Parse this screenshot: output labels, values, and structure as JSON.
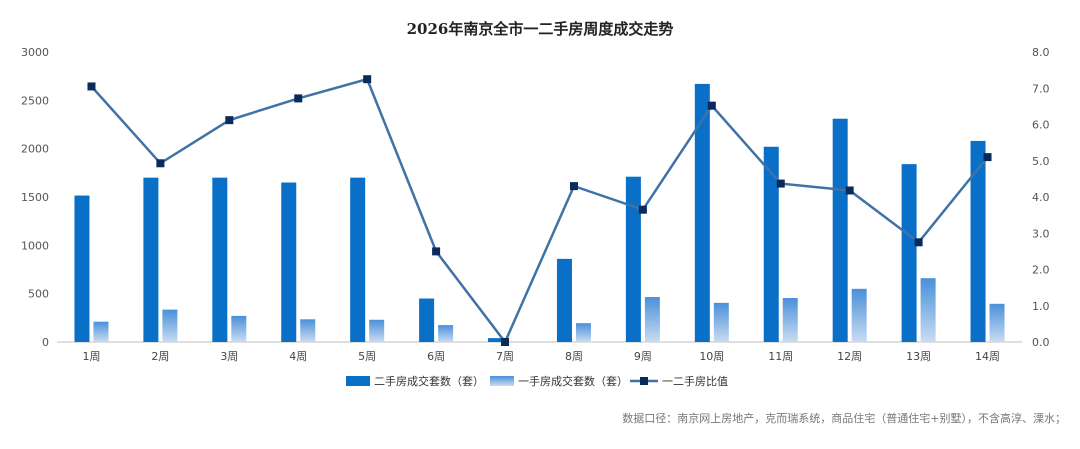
{
  "chart_data": {
    "type": "bar",
    "title": "2026年南京全市一二手房周度成交走势",
    "categories": [
      "1周",
      "2周",
      "3周",
      "4周",
      "5周",
      "6周",
      "7周",
      "8周",
      "9周",
      "10周",
      "11周",
      "12周",
      "13周",
      "14周"
    ],
    "series": [
      {
        "name": "二手房成交套数（套）",
        "type": "bar",
        "axis": "left",
        "values": [
          1515,
          1700,
          1700,
          1650,
          1700,
          450,
          40,
          860,
          1710,
          2670,
          2020,
          2310,
          1840,
          2080
        ],
        "color": "#0a6fc6"
      },
      {
        "name": "一手房成交套数（套）",
        "type": "bar",
        "axis": "left",
        "values": [
          210,
          335,
          270,
          235,
          230,
          175,
          0,
          195,
          465,
          405,
          455,
          550,
          660,
          395
        ],
        "color": "#5b9bd5"
      },
      {
        "name": "一二手房比值",
        "type": "line",
        "axis": "right",
        "values": [
          7.05,
          4.93,
          6.12,
          6.72,
          7.25,
          2.5,
          0.0,
          4.3,
          3.65,
          6.52,
          4.37,
          4.18,
          2.75,
          5.1
        ],
        "color": "#3f72a6",
        "marker_color": "#0b2a5c"
      }
    ],
    "y_left": {
      "ylim": [
        0,
        3000
      ],
      "ticks": [
        "0",
        "500",
        "1000",
        "1500",
        "2000",
        "2500",
        "3000"
      ]
    },
    "y_right": {
      "ylim": [
        0,
        8
      ],
      "ticks": [
        "0.0",
        "1.0",
        "2.0",
        "3.0",
        "4.0",
        "5.0",
        "6.0",
        "7.0",
        "8.0"
      ]
    },
    "grid": false,
    "legend_position": "bottom"
  },
  "source_note": "数据口径：南京网上房地产，克而瑞系统，商品住宅（普通住宅+别墅），不含高淳、溧水；"
}
